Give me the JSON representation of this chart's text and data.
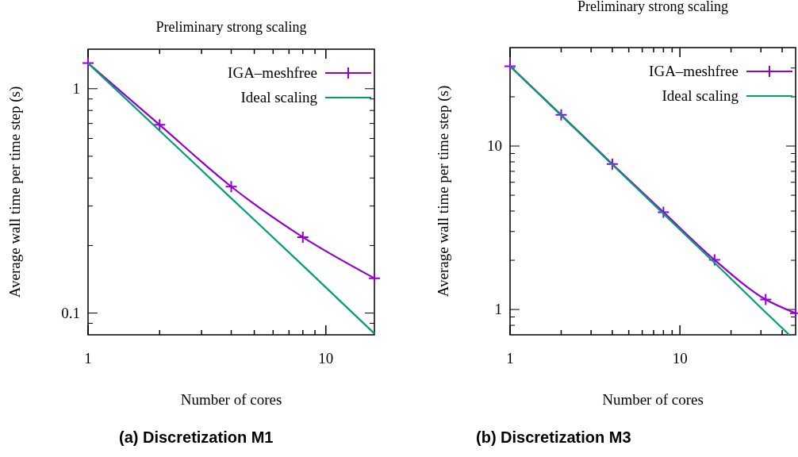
{
  "chart_data": [
    {
      "type": "line",
      "title": "Preliminary strong scaling",
      "xlabel": "Number of cores",
      "ylabel": "Average wall time per time step (s)",
      "log": "xy",
      "legend": "top right",
      "annotations": [
        "(a) Discretization M1"
      ],
      "xlim": [
        1,
        16
      ],
      "xticks": [
        {
          "value": 1,
          "label": "1"
        },
        {
          "value": 2,
          "label": null
        },
        {
          "value": 3,
          "label": null
        },
        {
          "value": 4,
          "label": null
        },
        {
          "value": 5,
          "label": null
        },
        {
          "value": 6,
          "label": null
        },
        {
          "value": 7,
          "label": null
        },
        {
          "value": 8,
          "label": null
        },
        {
          "value": 9,
          "label": null
        },
        10
      ],
      "ylim": [
        0.08,
        1.5
      ],
      "yticks": [
        {
          "value": 0.09,
          "label": null
        },
        0.1,
        {
          "value": 0.2,
          "label": null
        },
        {
          "value": 0.3,
          "label": null
        },
        {
          "value": 0.4,
          "label": null
        },
        {
          "value": 0.5,
          "label": null
        },
        {
          "value": 0.6,
          "label": null
        },
        {
          "value": 0.7,
          "label": null
        },
        {
          "value": 0.8,
          "label": null
        },
        {
          "value": 0.9,
          "label": null
        },
        {
          "value": 1,
          "label": "1"
        }
      ],
      "series": [
        {
          "name": "IGA–meshfree",
          "color": "#9400d3",
          "marker": "cross",
          "x": [
            1,
            2,
            4,
            8,
            16
          ],
          "values": [
            1.3,
            0.69,
            0.366,
            0.218,
            0.143
          ]
        },
        {
          "name": "Ideal scaling",
          "color": "#009e73",
          "marker": "none",
          "x": [
            1,
            2,
            4,
            8,
            16
          ],
          "values": [
            1.3,
            0.65,
            0.325,
            0.163,
            0.081
          ]
        }
      ]
    },
    {
      "type": "line",
      "title": "Preliminary strong scaling",
      "xlabel": "Number of cores",
      "ylabel": "Average wall time per time step (s)",
      "log": "xy",
      "legend": "top right",
      "annotations": [
        "(b) Discretization M3"
      ],
      "xlim": [
        1,
        48
      ],
      "xticks": [
        {
          "value": 1,
          "label": "1"
        },
        {
          "value": 2,
          "label": null
        },
        {
          "value": 3,
          "label": null
        },
        {
          "value": 4,
          "label": null
        },
        {
          "value": 5,
          "label": null
        },
        {
          "value": 6,
          "label": null
        },
        {
          "value": 7,
          "label": null
        },
        {
          "value": 8,
          "label": null
        },
        {
          "value": 9,
          "label": null
        },
        10,
        {
          "value": 20,
          "label": null
        },
        {
          "value": 30,
          "label": null
        },
        {
          "value": 40,
          "label": null
        }
      ],
      "ylim": [
        0.7,
        40
      ],
      "yticks": [
        {
          "value": 0.8,
          "label": null
        },
        {
          "value": 0.9,
          "label": null
        },
        {
          "value": 1,
          "label": "1"
        },
        {
          "value": 2,
          "label": null
        },
        {
          "value": 3,
          "label": null
        },
        {
          "value": 4,
          "label": null
        },
        {
          "value": 5,
          "label": null
        },
        {
          "value": 6,
          "label": null
        },
        {
          "value": 7,
          "label": null
        },
        {
          "value": 8,
          "label": null
        },
        {
          "value": 9,
          "label": null
        },
        10,
        {
          "value": 20,
          "label": null
        },
        {
          "value": 30,
          "label": null
        }
      ],
      "series": [
        {
          "name": "IGA–meshfree",
          "color": "#9400d3",
          "marker": "cross",
          "x": [
            1,
            2,
            4,
            8,
            16,
            32,
            48
          ],
          "values": [
            30.8,
            15.5,
            7.76,
            3.94,
            2.01,
            1.15,
            0.95
          ]
        },
        {
          "name": "Ideal scaling",
          "color": "#009e73",
          "marker": "none",
          "x": [
            1,
            2,
            4,
            8,
            16,
            32,
            44
          ],
          "values": [
            30.8,
            15.4,
            7.7,
            3.85,
            1.93,
            0.96,
            0.7
          ]
        }
      ]
    }
  ]
}
